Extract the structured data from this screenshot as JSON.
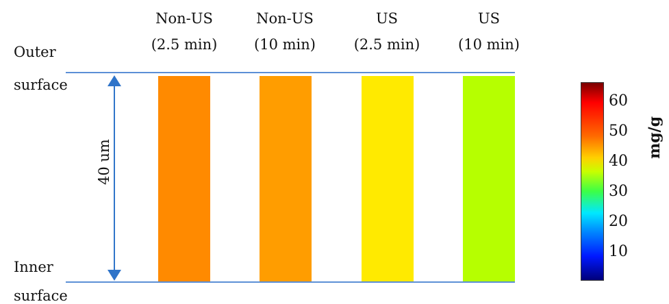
{
  "surfaces": {
    "outer_line1": "Outer",
    "outer_line2": "surface",
    "inner_line1": "Inner",
    "inner_line2": "surface"
  },
  "thickness_label": "40 um",
  "columns": [
    {
      "name": "Non-US",
      "time": "(2.5 min)",
      "color": "#ff8a00"
    },
    {
      "name": "Non-US",
      "time": "(10 min)",
      "color": "#ff9d00"
    },
    {
      "name": "US",
      "time": "(2.5 min)",
      "color": "#ffea00"
    },
    {
      "name": "US",
      "time": "(10 min)",
      "color": "#b6ff00"
    }
  ],
  "colorbar": {
    "unit": "mg/g",
    "ticks": [
      "60",
      "50",
      "40",
      "30",
      "20",
      "10"
    ]
  }
}
